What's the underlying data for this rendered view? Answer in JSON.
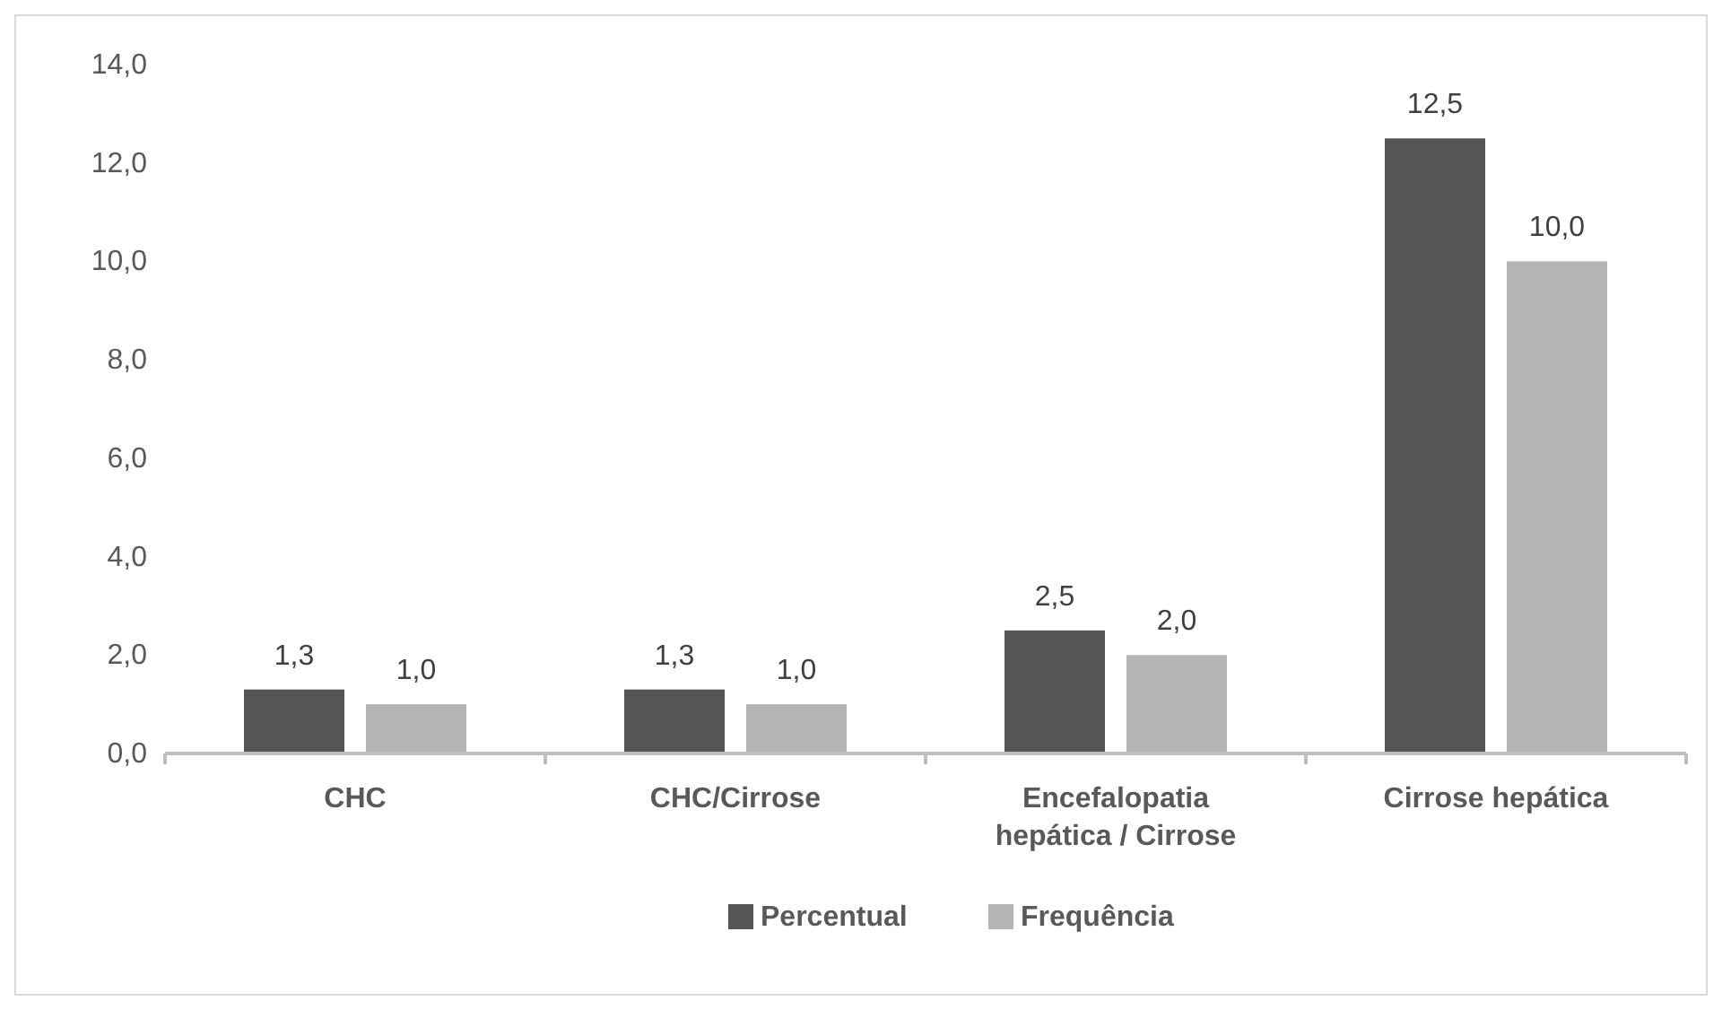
{
  "chart_data": {
    "type": "bar",
    "categories": [
      "CHC",
      "CHC/Cirrose",
      "Encefalopatia hepática / Cirrose",
      "Cirrose hepática"
    ],
    "series": [
      {
        "name": "Percentual",
        "color": "#555555",
        "values": [
          1.3,
          1.3,
          2.5,
          12.5
        ],
        "value_labels": [
          "1,3",
          "1,3",
          "2,5",
          "12,5"
        ]
      },
      {
        "name": "Frequência",
        "color": "#b4b4b4",
        "values": [
          1.0,
          1.0,
          2.0,
          10.0
        ],
        "value_labels": [
          "1,0",
          "1,0",
          "2,0",
          "10,0"
        ]
      }
    ],
    "ylim": [
      0,
      14
    ],
    "yticks": [
      {
        "value": 0,
        "label": "0,0"
      },
      {
        "value": 2,
        "label": "2,0"
      },
      {
        "value": 4,
        "label": "4,0"
      },
      {
        "value": 6,
        "label": "6,0"
      },
      {
        "value": 8,
        "label": "8,0"
      },
      {
        "value": 10,
        "label": "10,0"
      },
      {
        "value": 12,
        "label": "12,0"
      },
      {
        "value": 14,
        "label": "14,0"
      }
    ],
    "grid": false,
    "legend": "bottom"
  }
}
